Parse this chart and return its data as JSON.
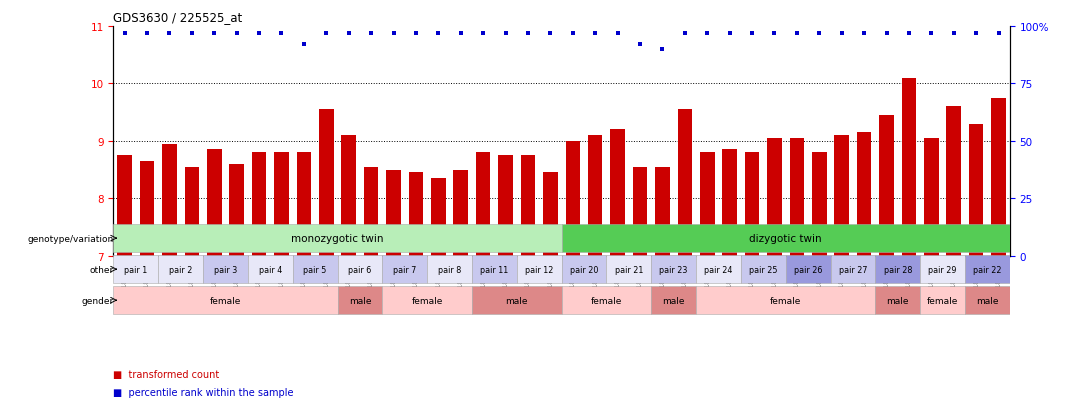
{
  "title": "GDS3630 / 225525_at",
  "samples": [
    "GSM189751",
    "GSM189752",
    "GSM189753",
    "GSM189754",
    "GSM189755",
    "GSM189756",
    "GSM189757",
    "GSM189758",
    "GSM189759",
    "GSM189760",
    "GSM189761",
    "GSM189762",
    "GSM189763",
    "GSM189764",
    "GSM189765",
    "GSM189766",
    "GSM189767",
    "GSM189768",
    "GSM189769",
    "GSM189770",
    "GSM189771",
    "GSM189772",
    "GSM189773",
    "GSM189774",
    "GSM189777",
    "GSM189778",
    "GSM189779",
    "GSM189780",
    "GSM189781",
    "GSM189782",
    "GSM189783",
    "GSM189784",
    "GSM189785",
    "GSM189786",
    "GSM189787",
    "GSM189788",
    "GSM189789",
    "GSM189790",
    "GSM189775",
    "GSM189776"
  ],
  "bar_values": [
    8.75,
    8.65,
    8.95,
    8.55,
    8.85,
    8.6,
    8.8,
    8.8,
    8.8,
    9.55,
    9.1,
    8.55,
    8.5,
    8.45,
    8.35,
    8.5,
    8.8,
    8.75,
    8.75,
    8.45,
    9.0,
    9.1,
    9.2,
    8.55,
    8.55,
    9.55,
    8.8,
    8.85,
    8.8,
    9.05,
    9.05,
    8.8,
    9.1,
    9.15,
    9.45,
    10.1,
    9.05,
    9.6,
    9.3,
    9.75
  ],
  "percentile_values": [
    97,
    97,
    97,
    97,
    97,
    97,
    97,
    97,
    92,
    97,
    97,
    97,
    97,
    97,
    97,
    97,
    97,
    97,
    97,
    97,
    97,
    97,
    97,
    92,
    90,
    97,
    97,
    97,
    97,
    97,
    97,
    97,
    97,
    97,
    97,
    97,
    97,
    97,
    97,
    97
  ],
  "ylim": [
    7,
    11
  ],
  "yticks_left": [
    7,
    8,
    9,
    10,
    11
  ],
  "yticks_right": [
    0,
    25,
    50,
    75,
    100
  ],
  "bar_color": "#cc0000",
  "dot_color": "#0000cc",
  "background_color": "#ffffff",
  "genotype_groups": [
    {
      "label": "monozygotic twin",
      "start": 0,
      "end": 20,
      "color": "#b8eeb8"
    },
    {
      "label": "dizygotic twin",
      "start": 20,
      "end": 40,
      "color": "#55cc55"
    }
  ],
  "pair_groups": [
    {
      "label": "pair 1",
      "start": 0,
      "end": 2,
      "color": "#e8e8f8"
    },
    {
      "label": "pair 2",
      "start": 2,
      "end": 4,
      "color": "#e8e8f8"
    },
    {
      "label": "pair 3",
      "start": 4,
      "end": 6,
      "color": "#c8c8ee"
    },
    {
      "label": "pair 4",
      "start": 6,
      "end": 8,
      "color": "#e8e8f8"
    },
    {
      "label": "pair 5",
      "start": 8,
      "end": 10,
      "color": "#c8c8ee"
    },
    {
      "label": "pair 6",
      "start": 10,
      "end": 12,
      "color": "#e8e8f8"
    },
    {
      "label": "pair 7",
      "start": 12,
      "end": 14,
      "color": "#c8c8ee"
    },
    {
      "label": "pair 8",
      "start": 14,
      "end": 16,
      "color": "#e8e8f8"
    },
    {
      "label": "pair 11",
      "start": 16,
      "end": 18,
      "color": "#c8c8ee"
    },
    {
      "label": "pair 12",
      "start": 18,
      "end": 20,
      "color": "#e8e8f8"
    },
    {
      "label": "pair 20",
      "start": 20,
      "end": 22,
      "color": "#c8c8ee"
    },
    {
      "label": "pair 21",
      "start": 22,
      "end": 24,
      "color": "#e8e8f8"
    },
    {
      "label": "pair 23",
      "start": 24,
      "end": 26,
      "color": "#c8c8ee"
    },
    {
      "label": "pair 24",
      "start": 26,
      "end": 28,
      "color": "#e8e8f8"
    },
    {
      "label": "pair 25",
      "start": 28,
      "end": 30,
      "color": "#c8c8ee"
    },
    {
      "label": "pair 26",
      "start": 30,
      "end": 32,
      "color": "#9999dd"
    },
    {
      "label": "pair 27",
      "start": 32,
      "end": 34,
      "color": "#c8c8ee"
    },
    {
      "label": "pair 28",
      "start": 34,
      "end": 36,
      "color": "#9999dd"
    },
    {
      "label": "pair 29",
      "start": 36,
      "end": 38,
      "color": "#e8e8f8"
    },
    {
      "label": "pair 22",
      "start": 38,
      "end": 40,
      "color": "#9999dd"
    }
  ],
  "gender_groups": [
    {
      "label": "female",
      "start": 0,
      "end": 10,
      "color": "#ffcccc"
    },
    {
      "label": "male",
      "start": 10,
      "end": 12,
      "color": "#dd8888"
    },
    {
      "label": "female",
      "start": 12,
      "end": 16,
      "color": "#ffcccc"
    },
    {
      "label": "male",
      "start": 16,
      "end": 20,
      "color": "#dd8888"
    },
    {
      "label": "female",
      "start": 20,
      "end": 24,
      "color": "#ffcccc"
    },
    {
      "label": "male",
      "start": 24,
      "end": 26,
      "color": "#dd8888"
    },
    {
      "label": "female",
      "start": 26,
      "end": 34,
      "color": "#ffcccc"
    },
    {
      "label": "male",
      "start": 34,
      "end": 36,
      "color": "#dd8888"
    },
    {
      "label": "female",
      "start": 36,
      "end": 38,
      "color": "#ffcccc"
    },
    {
      "label": "male",
      "start": 38,
      "end": 40,
      "color": "#dd8888"
    }
  ],
  "row_labels": [
    "genotype/variation",
    "other",
    "gender"
  ],
  "legend_red_label": "transformed count",
  "legend_blue_label": "percentile rank within the sample"
}
